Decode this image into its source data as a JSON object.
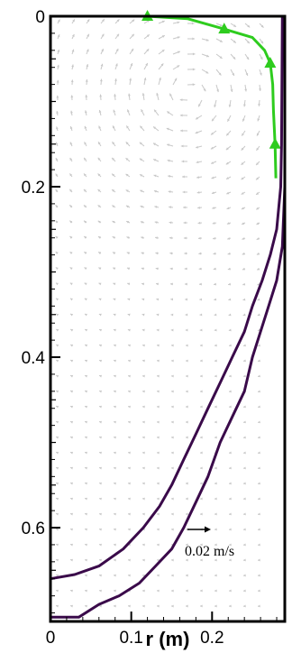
{
  "chart_data": {
    "type": "line",
    "title": "",
    "xlabel": "r (m)",
    "ylabel": "",
    "xlim": [
      0,
      0.29
    ],
    "ylim": [
      0.71,
      0
    ],
    "x_ticks": [
      0,
      0.1,
      0.2
    ],
    "x_tick_labels": [
      "0",
      "0.1",
      "0.2"
    ],
    "y_ticks": [
      0,
      0.2,
      0.4,
      0.6
    ],
    "y_tick_labels": [
      "0",
      "0.2",
      "0.4",
      "0.6"
    ],
    "grid": false,
    "legend": "none",
    "reference_vector": {
      "label": "0.02 m/s",
      "magnitude": 0.02
    },
    "vector_field": {
      "color": "#c8c8c8",
      "description_units": "m/s"
    },
    "series": [
      {
        "color": "#2ecc1e",
        "marker": "triangle",
        "points": [
          [
            0.12,
            0.0
          ],
          [
            0.17,
            0.003
          ],
          [
            0.215,
            0.015
          ],
          [
            0.25,
            0.025
          ],
          [
            0.265,
            0.04
          ],
          [
            0.272,
            0.055
          ],
          [
            0.275,
            0.08
          ],
          [
            0.276,
            0.11
          ],
          [
            0.278,
            0.15
          ],
          [
            0.279,
            0.19
          ]
        ],
        "marker_points": [
          [
            0.12,
            0.0
          ],
          [
            0.215,
            0.015
          ],
          [
            0.272,
            0.055
          ],
          [
            0.278,
            0.15
          ]
        ]
      },
      {
        "color": "#3a0a4a",
        "marker": "none",
        "points": [
          [
            0.0,
            0.66
          ],
          [
            0.03,
            0.655
          ],
          [
            0.06,
            0.645
          ],
          [
            0.09,
            0.625
          ],
          [
            0.115,
            0.6
          ],
          [
            0.135,
            0.575
          ],
          [
            0.15,
            0.55
          ],
          [
            0.165,
            0.52
          ],
          [
            0.18,
            0.49
          ],
          [
            0.195,
            0.46
          ],
          [
            0.21,
            0.43
          ],
          [
            0.225,
            0.4
          ],
          [
            0.24,
            0.37
          ],
          [
            0.25,
            0.34
          ],
          [
            0.262,
            0.31
          ],
          [
            0.272,
            0.28
          ],
          [
            0.28,
            0.25
          ],
          [
            0.285,
            0.2
          ],
          [
            0.286,
            0.15
          ],
          [
            0.287,
            0.0
          ]
        ]
      },
      {
        "color": "#3a0a4a",
        "marker": "none",
        "points": [
          [
            0.0,
            0.705
          ],
          [
            0.035,
            0.705
          ],
          [
            0.06,
            0.69
          ],
          [
            0.085,
            0.68
          ],
          [
            0.11,
            0.665
          ],
          [
            0.13,
            0.645
          ],
          [
            0.15,
            0.625
          ],
          [
            0.165,
            0.6
          ],
          [
            0.18,
            0.57
          ],
          [
            0.195,
            0.54
          ],
          [
            0.21,
            0.5
          ],
          [
            0.225,
            0.47
          ],
          [
            0.24,
            0.44
          ],
          [
            0.25,
            0.4
          ],
          [
            0.26,
            0.37
          ],
          [
            0.27,
            0.34
          ],
          [
            0.28,
            0.31
          ],
          [
            0.287,
            0.27
          ],
          [
            0.29,
            0.2
          ],
          [
            0.29,
            0.0
          ]
        ]
      }
    ]
  }
}
